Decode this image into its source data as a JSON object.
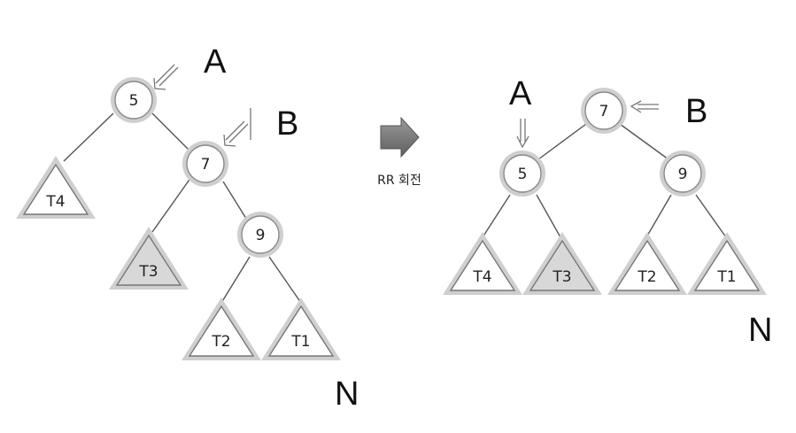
{
  "left_tree": {
    "nodes": {
      "root": "5",
      "mid": "7",
      "low": "9"
    },
    "subtrees": {
      "t4": "T4",
      "t3": "T3",
      "t2": "T2",
      "t1": "T1"
    },
    "labels": {
      "a": "A",
      "b": "B",
      "n": "N"
    }
  },
  "operation": {
    "caption": "RR 회전"
  },
  "right_tree": {
    "nodes": {
      "root": "7",
      "left": "5",
      "right": "9"
    },
    "subtrees": {
      "t4": "T4",
      "t3": "T3",
      "t2": "T2",
      "t1": "T1"
    },
    "labels": {
      "a": "A",
      "b": "B",
      "n": "N"
    }
  },
  "colors": {
    "highlight_subtree": "#d8d8d8",
    "normal_subtree": "#ffffff",
    "arrow": "#777777"
  }
}
